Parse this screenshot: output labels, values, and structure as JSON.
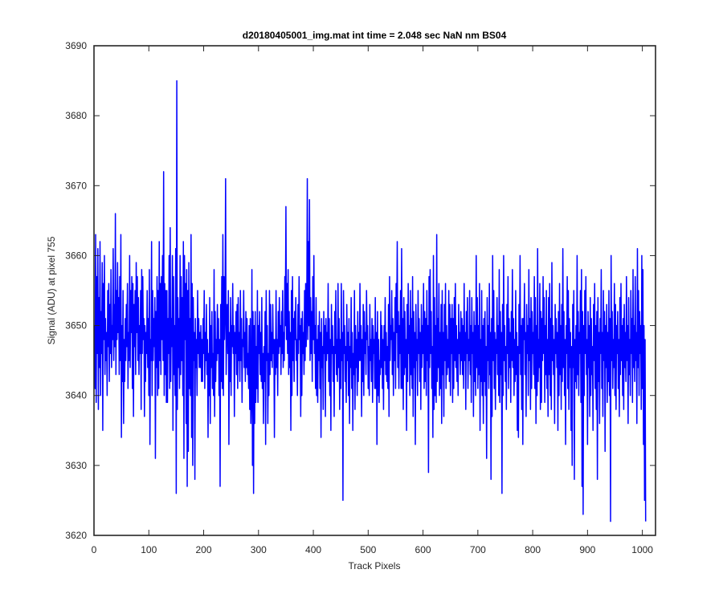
{
  "chart_data": {
    "type": "line",
    "title": "d20180405001_img.mat int time = 2.048 sec  NaN nm BS04",
    "xlabel": "Track Pixels",
    "ylabel": "Signal (ADU) at pixel 755",
    "xlim": [
      0,
      1024
    ],
    "ylim": [
      3620,
      3690
    ],
    "xticks": [
      0,
      100,
      200,
      300,
      400,
      500,
      600,
      700,
      800,
      900,
      1000
    ],
    "yticks": [
      3620,
      3630,
      3640,
      3650,
      3660,
      3670,
      3680,
      3690
    ],
    "grid": false,
    "line_color": "#0000ff",
    "series": [
      {
        "x_start": 1,
        "x_step": 1,
        "values": [
          3650,
          3641,
          3663,
          3639,
          3657,
          3646,
          3661,
          3638,
          3654,
          3644,
          3662,
          3640,
          3652,
          3646,
          3659,
          3635,
          3656,
          3648,
          3660,
          3643,
          3651,
          3645,
          3649,
          3640,
          3655,
          3647,
          3656,
          3642,
          3653,
          3646,
          3658,
          3644,
          3650,
          3648,
          3661,
          3645,
          3653,
          3647,
          3666,
          3643,
          3655,
          3648,
          3659,
          3649,
          3654,
          3643,
          3657,
          3645,
          3663,
          3634,
          3650,
          3642,
          3655,
          3636,
          3648,
          3642,
          3651,
          3645,
          3653,
          3647,
          3656,
          3641,
          3649,
          3645,
          3660,
          3644,
          3655,
          3649,
          3657,
          3641,
          3656,
          3637,
          3653,
          3647,
          3655,
          3643,
          3659,
          3649,
          3657,
          3645,
          3654,
          3643,
          3650,
          3646,
          3655,
          3638,
          3658,
          3646,
          3657,
          3648,
          3651,
          3637,
          3650,
          3642,
          3649,
          3646,
          3655,
          3644,
          3651,
          3640,
          3658,
          3633,
          3648,
          3645,
          3662,
          3640,
          3655,
          3645,
          3651,
          3647,
          3654,
          3631,
          3652,
          3644,
          3657,
          3640,
          3655,
          3641,
          3662,
          3645,
          3656,
          3643,
          3657,
          3648,
          3660,
          3645,
          3672,
          3640,
          3656,
          3643,
          3655,
          3639,
          3655,
          3639,
          3651,
          3646,
          3660,
          3641,
          3664,
          3642,
          3651,
          3647,
          3660,
          3635,
          3657,
          3643,
          3650,
          3640,
          3661,
          3626,
          3685,
          3638,
          3654,
          3644,
          3651,
          3641,
          3660,
          3643,
          3657,
          3645,
          3654,
          3640,
          3662,
          3631,
          3660,
          3648,
          3656,
          3636,
          3658,
          3627,
          3655,
          3632,
          3659,
          3641,
          3651,
          3640,
          3663,
          3634,
          3656,
          3630,
          3654,
          3645,
          3649,
          3628,
          3651,
          3644,
          3648,
          3640,
          3655,
          3646,
          3651,
          3644,
          3649,
          3644,
          3650,
          3642,
          3648,
          3642,
          3651,
          3646,
          3655,
          3641,
          3649,
          3645,
          3653,
          3643,
          3648,
          3634,
          3646,
          3640,
          3654,
          3636,
          3650,
          3644,
          3652,
          3641,
          3646,
          3640,
          3658,
          3637,
          3652,
          3642,
          3648,
          3645,
          3653,
          3646,
          3651,
          3640,
          3648,
          3627,
          3653,
          3642,
          3657,
          3641,
          3663,
          3640,
          3657,
          3648,
          3652,
          3671,
          3643,
          3650,
          3653,
          3646,
          3655,
          3633,
          3649,
          3642,
          3654,
          3640,
          3650,
          3647,
          3656,
          3646,
          3650,
          3637,
          3649,
          3646,
          3652,
          3643,
          3653,
          3641,
          3654,
          3645,
          3649,
          3642,
          3655,
          3645,
          3651,
          3639,
          3648,
          3647,
          3655,
          3644,
          3649,
          3642,
          3652,
          3644,
          3651,
          3643,
          3646,
          3641,
          3650,
          3638,
          3651,
          3636,
          3640,
          3658,
          3630,
          3652,
          3626,
          3650,
          3636,
          3652,
          3639,
          3647,
          3641,
          3655,
          3639,
          3650,
          3646,
          3652,
          3643,
          3649,
          3642,
          3654,
          3641,
          3646,
          3636,
          3647,
          3642,
          3652,
          3633,
          3655,
          3645,
          3650,
          3636,
          3646,
          3640,
          3655,
          3643,
          3653,
          3645,
          3649,
          3644,
          3653,
          3646,
          3648,
          3634,
          3648,
          3643,
          3655,
          3644,
          3648,
          3640,
          3652,
          3646,
          3654,
          3647,
          3650,
          3643,
          3652,
          3646,
          3655,
          3644,
          3649,
          3645,
          3657,
          3650,
          3667,
          3648,
          3656,
          3646,
          3658,
          3643,
          3652,
          3644,
          3649,
          3635,
          3655,
          3640,
          3657,
          3645,
          3651,
          3642,
          3652,
          3648,
          3654,
          3645,
          3648,
          3640,
          3653,
          3646,
          3657,
          3648,
          3650,
          3637,
          3651,
          3640,
          3652,
          3646,
          3649,
          3643,
          3655,
          3645,
          3656,
          3647,
          3652,
          3671,
          3648,
          3662,
          3650,
          3668,
          3645,
          3654,
          3646,
          3652,
          3642,
          3657,
          3648,
          3660,
          3646,
          3650,
          3641,
          3654,
          3640,
          3648,
          3639,
          3650,
          3645,
          3652,
          3641,
          3649,
          3634,
          3651,
          3644,
          3647,
          3638,
          3652,
          3646,
          3650,
          3637,
          3651,
          3645,
          3649,
          3646,
          3656,
          3642,
          3651,
          3640,
          3648,
          3635,
          3653,
          3646,
          3650,
          3642,
          3647,
          3637,
          3652,
          3646,
          3655,
          3643,
          3648,
          3642,
          3656,
          3644,
          3651,
          3638,
          3648,
          3641,
          3656,
          3645,
          3649,
          3625,
          3655,
          3646,
          3650,
          3642,
          3647,
          3639,
          3653,
          3645,
          3649,
          3640,
          3651,
          3636,
          3647,
          3644,
          3654,
          3641,
          3649,
          3635,
          3646,
          3643,
          3655,
          3638,
          3650,
          3644,
          3648,
          3640,
          3652,
          3642,
          3649,
          3645,
          3656,
          3645,
          3650,
          3637,
          3648,
          3642,
          3653,
          3640,
          3652,
          3646,
          3649,
          3643,
          3655,
          3648,
          3650,
          3641,
          3647,
          3640,
          3653,
          3645,
          3648,
          3642,
          3651,
          3639,
          3650,
          3646,
          3648,
          3641,
          3654,
          3641,
          3649,
          3633,
          3652,
          3640,
          3648,
          3639,
          3645,
          3643,
          3652,
          3644,
          3650,
          3641,
          3648,
          3638,
          3650,
          3645,
          3654,
          3643,
          3649,
          3642,
          3647,
          3641,
          3653,
          3637,
          3657,
          3645,
          3650,
          3648,
          3655,
          3643,
          3651,
          3640,
          3649,
          3645,
          3654,
          3641,
          3656,
          3649,
          3662,
          3644,
          3652,
          3641,
          3650,
          3646,
          3655,
          3641,
          3661,
          3641,
          3651,
          3638,
          3654,
          3643,
          3652,
          3644,
          3648,
          3635,
          3653,
          3642,
          3656,
          3646,
          3650,
          3640,
          3655,
          3643,
          3651,
          3641,
          3657,
          3637,
          3652,
          3644,
          3649,
          3633,
          3653,
          3645,
          3648,
          3640,
          3655,
          3646,
          3651,
          3642,
          3649,
          3638,
          3653,
          3644,
          3650,
          3646,
          3656,
          3641,
          3652,
          3642,
          3651,
          3640,
          3655,
          3645,
          3650,
          3629,
          3657,
          3644,
          3658,
          3646,
          3652,
          3641,
          3647,
          3634,
          3660,
          3638,
          3654,
          3640,
          3650,
          3639,
          3663,
          3642,
          3651,
          3644,
          3656,
          3640,
          3649,
          3641,
          3653,
          3636,
          3655,
          3643,
          3649,
          3637,
          3653,
          3645,
          3656,
          3641,
          3650,
          3643,
          3648,
          3644,
          3655,
          3642,
          3653,
          3640,
          3651,
          3646,
          3653,
          3639,
          3651,
          3641,
          3654,
          3645,
          3656,
          3644,
          3650,
          3642,
          3648,
          3640,
          3653,
          3646,
          3649,
          3643,
          3652,
          3645,
          3651,
          3643,
          3650,
          3641,
          3656,
          3645,
          3649,
          3638,
          3652,
          3646,
          3654,
          3641,
          3648,
          3645,
          3655,
          3643,
          3650,
          3639,
          3654,
          3646,
          3649,
          3637,
          3652,
          3642,
          3650,
          3640,
          3660,
          3644,
          3654,
          3641,
          3650,
          3643,
          3656,
          3635,
          3648,
          3642,
          3655,
          3640,
          3650,
          3636,
          3651,
          3642,
          3652,
          3640,
          3647,
          3631,
          3654,
          3645,
          3650,
          3641,
          3656,
          3643,
          3649,
          3628,
          3651,
          3637,
          3660,
          3645,
          3655,
          3641,
          3649,
          3638,
          3648,
          3646,
          3654,
          3643,
          3650,
          3640,
          3658,
          3639,
          3652,
          3643,
          3649,
          3626,
          3653,
          3640,
          3660,
          3645,
          3650,
          3642,
          3647,
          3638,
          3653,
          3646,
          3657,
          3641,
          3651,
          3644,
          3649,
          3639,
          3652,
          3645,
          3658,
          3644,
          3651,
          3640,
          3648,
          3642,
          3655,
          3643,
          3649,
          3635,
          3647,
          3634,
          3653,
          3646,
          3660,
          3643,
          3650,
          3638,
          3651,
          3633,
          3651,
          3648,
          3656,
          3643,
          3649,
          3637,
          3653,
          3646,
          3650,
          3640,
          3658,
          3645,
          3651,
          3638,
          3654,
          3641,
          3652,
          3646,
          3649,
          3643,
          3657,
          3641,
          3654,
          3636,
          3650,
          3640,
          3661,
          3642,
          3648,
          3644,
          3656,
          3638,
          3652,
          3639,
          3651,
          3645,
          3657,
          3646,
          3654,
          3639,
          3650,
          3643,
          3655,
          3641,
          3648,
          3637,
          3654,
          3643,
          3656,
          3640,
          3651,
          3638,
          3659,
          3645,
          3650,
          3643,
          3648,
          3636,
          3653,
          3646,
          3651,
          3644,
          3649,
          3635,
          3652,
          3640,
          3656,
          3643,
          3650,
          3638,
          3653,
          3642,
          3661,
          3644,
          3652,
          3640,
          3648,
          3633,
          3650,
          3646,
          3657,
          3641,
          3655,
          3638,
          3651,
          3644,
          3649,
          3635,
          3647,
          3630,
          3653,
          3644,
          3655,
          3628,
          3648,
          3642,
          3650,
          3641,
          3660,
          3643,
          3652,
          3640,
          3649,
          3646,
          3655,
          3639,
          3658,
          3627,
          3652,
          3623,
          3650,
          3640,
          3655,
          3646,
          3657,
          3643,
          3648,
          3633,
          3652,
          3644,
          3650,
          3637,
          3654,
          3640,
          3651,
          3643,
          3647,
          3635,
          3653,
          3645,
          3656,
          3641,
          3650,
          3638,
          3652,
          3628,
          3654,
          3642,
          3649,
          3636,
          3651,
          3646,
          3658,
          3641,
          3649,
          3637,
          3655,
          3645,
          3652,
          3632,
          3650,
          3644,
          3653,
          3639,
          3649,
          3642,
          3655,
          3640,
          3651,
          3622,
          3660,
          3645,
          3652,
          3641,
          3648,
          3644,
          3656,
          3640,
          3653,
          3638,
          3650,
          3646,
          3652,
          3641,
          3648,
          3637,
          3654,
          3643,
          3656,
          3645,
          3650,
          3640,
          3651,
          3638,
          3653,
          3644,
          3649,
          3642,
          3657,
          3645,
          3650,
          3636,
          3654,
          3643,
          3648,
          3640,
          3655,
          3646,
          3651,
          3639,
          3658,
          3644,
          3650,
          3642,
          3657,
          3645,
          3649,
          3636,
          3661,
          3644,
          3655,
          3640,
          3652,
          3646,
          3650,
          3638,
          3660,
          3641,
          3658,
          3633,
          3650,
          3625,
          3648,
          3622
        ]
      }
    ]
  }
}
